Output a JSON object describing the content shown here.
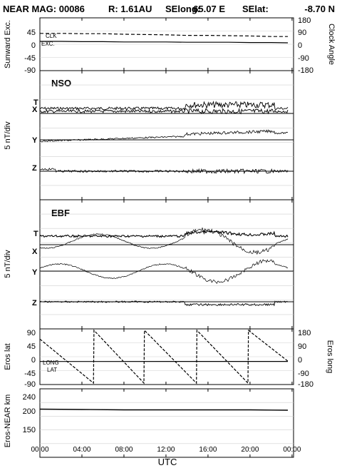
{
  "header": {
    "title": "NEAR MAG: 00086",
    "r": "R: 1.61AU",
    "selong_label": "SElong:",
    "selong_value": "65.07 E",
    "selat_label": "SElat:",
    "selat_value": "-8.70 N"
  },
  "chart_data": [
    {
      "type": "line",
      "panel": "sunward",
      "ylabel": "Sunward Exc.",
      "y2label": "Clock Angle",
      "yticks": [
        "45",
        "0",
        "-45",
        "-90"
      ],
      "y2ticks": [
        "180",
        "90",
        "0",
        "-90",
        "-180"
      ],
      "annotations": [
        "CLK",
        "EXC."
      ],
      "series": [
        {
          "name": "CLK",
          "style": "dashed",
          "x": [
            0,
            2,
            4,
            6,
            8,
            10,
            12,
            14,
            16,
            18,
            20,
            22,
            23.6
          ],
          "values": [
            38,
            38,
            37,
            37,
            35,
            34,
            33,
            31,
            31,
            30,
            29,
            27,
            27
          ]
        },
        {
          "name": "EXC.",
          "style": "solid",
          "x": [
            0,
            2,
            4,
            6,
            8,
            10,
            12,
            14,
            16,
            18,
            20,
            22,
            23.6
          ],
          "values": [
            10,
            10,
            9,
            9,
            8,
            8,
            8,
            7,
            7,
            7,
            6,
            6,
            5
          ]
        }
      ]
    },
    {
      "type": "line",
      "panel": "nso",
      "title": "NSO",
      "ylabel": "5 nT/div",
      "series_labels": [
        "T",
        "X",
        "Y",
        "Z"
      ]
    },
    {
      "type": "line",
      "panel": "ebf",
      "title": "EBF",
      "ylabel": "5 nT/div",
      "series_labels": [
        "T",
        "X",
        "Y",
        "Z"
      ]
    },
    {
      "type": "line",
      "panel": "eros",
      "ylabel": "Eros lat",
      "y2label": "Eros long",
      "yticks": [
        "90",
        "45",
        "0",
        "-45",
        "-90"
      ],
      "y2ticks": [
        "180",
        "90",
        "0",
        "-90",
        "-180"
      ],
      "annotations": [
        "LONG",
        "LAT"
      ],
      "series": [
        {
          "name": "LONG",
          "style": "dashed",
          "x": [
            0,
            5.1,
            5.15,
            9.9,
            9.95,
            14.9,
            14.95,
            19.8,
            19.85,
            23.6
          ],
          "values": [
            120,
            -180,
            180,
            -180,
            180,
            -180,
            180,
            -180,
            180,
            -30
          ]
        },
        {
          "name": "LAT",
          "style": "solid",
          "x": [
            0,
            23.6
          ],
          "values": [
            -9,
            -8.7
          ]
        }
      ]
    },
    {
      "type": "line",
      "panel": "distance",
      "ylabel": "Eros-NEAR km",
      "xlabel": "UTC",
      "yticks": [
        "240",
        "200",
        "150"
      ],
      "xticks": [
        "00:00",
        "04:00",
        "08:00",
        "12:00",
        "16:00",
        "20:00",
        "00:00"
      ],
      "series": [
        {
          "name": "distance",
          "x": [
            0,
            4,
            8,
            12,
            16,
            20,
            23.6
          ],
          "values": [
            205,
            204,
            203,
            203,
            203,
            203,
            202
          ]
        }
      ]
    }
  ]
}
